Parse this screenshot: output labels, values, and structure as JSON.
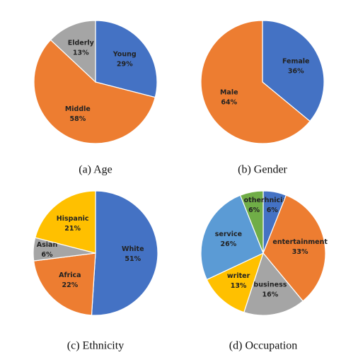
{
  "chart_data": [
    {
      "type": "pie",
      "title": "(a) Age",
      "categories": [
        "Young",
        "Middle",
        "Elderly"
      ],
      "values": [
        29,
        58,
        13
      ],
      "value_labels": [
        "29%",
        "58%",
        "13%"
      ],
      "colors": [
        "#4472c4",
        "#ed7d31",
        "#a5a5a5"
      ]
    },
    {
      "type": "pie",
      "title": "(b) Gender",
      "categories": [
        "Female",
        "Male"
      ],
      "values": [
        36,
        64
      ],
      "value_labels": [
        "36%",
        "64%"
      ],
      "colors": [
        "#4472c4",
        "#ed7d31"
      ]
    },
    {
      "type": "pie",
      "title": "(c) Ethnicity",
      "categories": [
        "White",
        "Africa",
        "Asian",
        "Hispanic"
      ],
      "values": [
        51,
        22,
        6,
        21
      ],
      "value_labels": [
        "51%",
        "22%",
        "6%",
        "21%"
      ],
      "colors": [
        "#4472c4",
        "#ed7d31",
        "#a5a5a5",
        "#ffc000"
      ]
    },
    {
      "type": "pie",
      "title": "(d) Occupation",
      "categories": [
        "technician",
        "entertainment",
        "business",
        "writer",
        "service",
        "other"
      ],
      "values": [
        6,
        33,
        16,
        13,
        26,
        6
      ],
      "value_labels": [
        "6%",
        "33%",
        "16%",
        "13%",
        "26%",
        "6%"
      ],
      "colors": [
        "#4472c4",
        "#ed7d31",
        "#a5a5a5",
        "#ffc000",
        "#5b9bd5",
        "#70ad47"
      ]
    }
  ]
}
